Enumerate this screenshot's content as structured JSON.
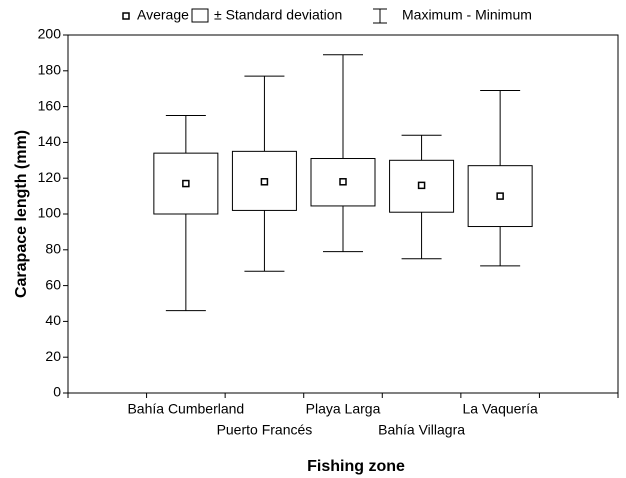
{
  "chart_data": {
    "type": "box",
    "x_label": "Fishing zone",
    "y_label": "Carapace length (mm)",
    "categories": [
      "Bahía Cumberland",
      "Puerto Francés",
      "Playa Larga",
      "Bahía Villagra",
      "La Vaquería"
    ],
    "series": [
      {
        "name": "Average",
        "values": [
          117,
          118,
          118,
          116,
          110
        ]
      },
      {
        "name": "± Standard deviation",
        "lower": [
          100,
          102,
          104.5,
          101,
          93
        ],
        "upper": [
          134,
          135,
          131,
          130,
          127
        ]
      },
      {
        "name": "Maximum - Minimum",
        "min": [
          46,
          68,
          79,
          75,
          71
        ],
        "max": [
          155,
          177,
          189,
          144,
          169
        ]
      }
    ],
    "ylim": [
      0,
      200
    ],
    "yticks": [
      0,
      20,
      40,
      60,
      80,
      100,
      120,
      140,
      160,
      180,
      200
    ]
  }
}
